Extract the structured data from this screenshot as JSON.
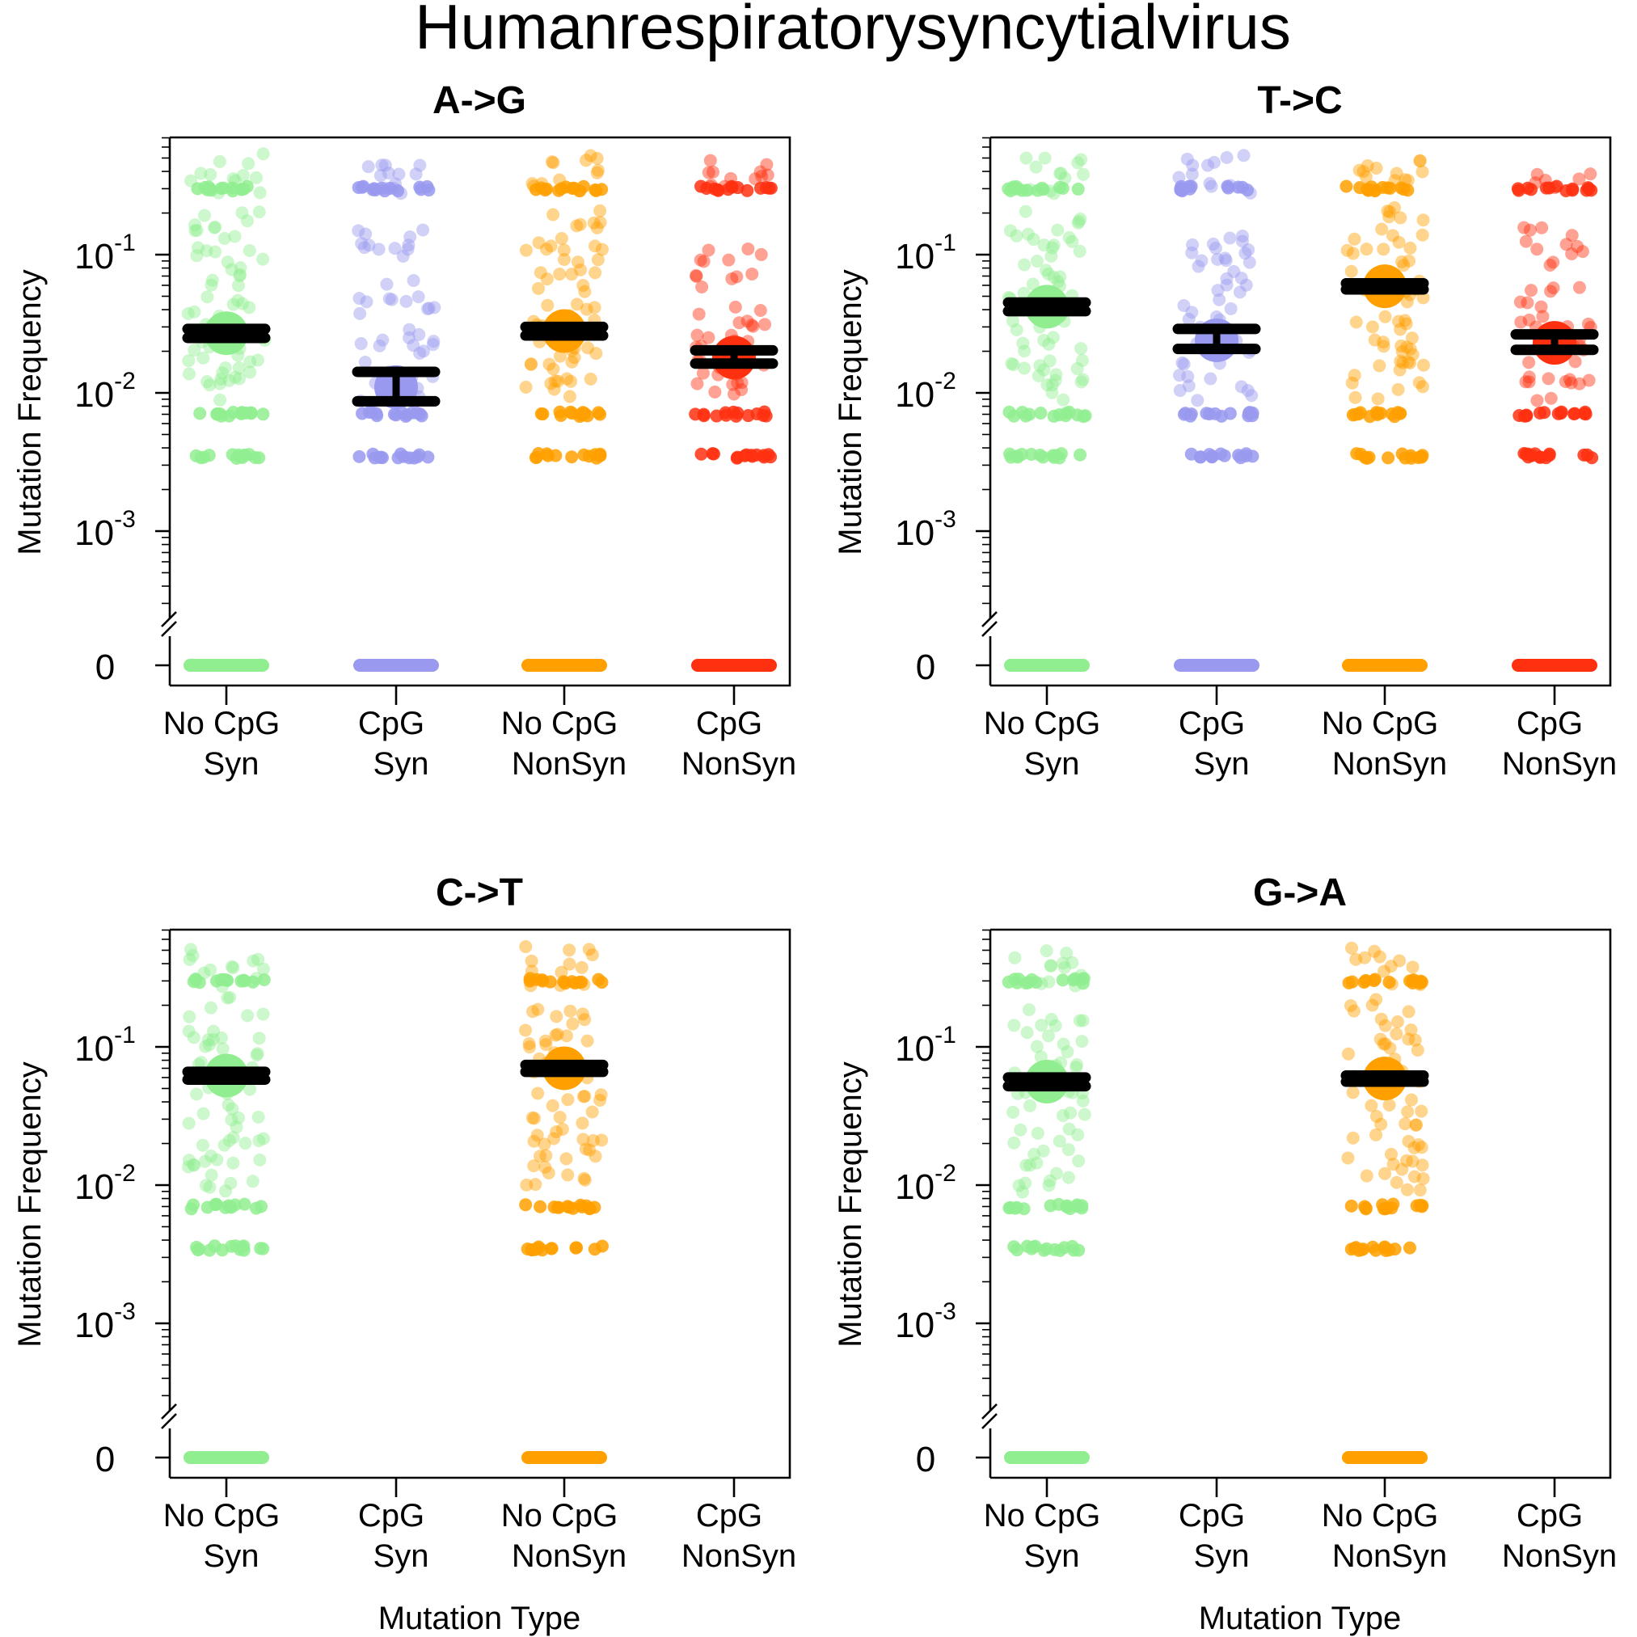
{
  "title": "Humanrespiratorysyncytialvirus",
  "common": {
    "ylabel": "Mutation Frequency",
    "xlabel": "Mutation Type",
    "y_tick_labels": [
      {
        "base": "10",
        "exp": "-1"
      },
      {
        "base": "10",
        "exp": "-2"
      },
      {
        "base": "10",
        "exp": "-3"
      },
      {
        "base": "0",
        "exp": ""
      }
    ],
    "categories": [
      {
        "line1": "No CpG",
        "line2": "Syn"
      },
      {
        "line1": "CpG",
        "line2": "Syn"
      },
      {
        "line1": "No CpG",
        "line2": "NonSyn"
      },
      {
        "line1": "CpG",
        "line2": "NonSyn"
      }
    ]
  },
  "colors": {
    "nocpg_syn": "#90EE90",
    "cpg_syn": "#9999F0",
    "nocpg_nonsyn": "#FFA000",
    "cpg_nonsyn": "#FF3010",
    "error_bar": "#000000"
  },
  "chart_data": [
    {
      "type": "scatter",
      "panel_title": "A->G",
      "y_scale": "log10 with zero break",
      "ylim": [
        0.0001,
        0.7
      ],
      "series": [
        {
          "category": "No CpG Syn",
          "mean": 0.027,
          "ci_low": 0.025,
          "ci_high": 0.029,
          "has_data": true,
          "levels": [
            0.0035,
            0.007,
            0.0105,
            0.014,
            0.018,
            0.024,
            0.035,
            0.05,
            0.07,
            0.1,
            0.13,
            0.19,
            0.3,
            0.33,
            0.45
          ]
        },
        {
          "category": "CpG Syn",
          "mean": 0.011,
          "ci_low": 0.0087,
          "ci_high": 0.0142,
          "has_data": true,
          "levels": [
            0.0035,
            0.007,
            0.0105,
            0.014,
            0.02,
            0.025,
            0.04,
            0.055,
            0.1,
            0.13,
            0.3,
            0.32,
            0.44
          ]
        },
        {
          "category": "No CpG NonSyn",
          "mean": 0.028,
          "ci_low": 0.026,
          "ci_high": 0.03,
          "has_data": true,
          "levels": [
            0.0035,
            0.007,
            0.0105,
            0.014,
            0.018,
            0.024,
            0.035,
            0.05,
            0.07,
            0.1,
            0.13,
            0.18,
            0.3,
            0.33,
            0.45
          ]
        },
        {
          "category": "CpG NonSyn",
          "mean": 0.018,
          "ci_low": 0.0163,
          "ci_high": 0.0203,
          "has_data": true,
          "levels": [
            0.0035,
            0.007,
            0.0105,
            0.014,
            0.02,
            0.027,
            0.035,
            0.06,
            0.1,
            0.3,
            0.33,
            0.42
          ]
        }
      ]
    },
    {
      "type": "scatter",
      "panel_title": "T->C",
      "y_scale": "log10 with zero break",
      "ylim": [
        0.0001,
        0.7
      ],
      "series": [
        {
          "category": "No CpG Syn",
          "mean": 0.042,
          "ci_low": 0.039,
          "ci_high": 0.045,
          "has_data": true,
          "levels": [
            0.0035,
            0.007,
            0.0105,
            0.014,
            0.018,
            0.024,
            0.035,
            0.05,
            0.07,
            0.1,
            0.13,
            0.17,
            0.3,
            0.33,
            0.45
          ]
        },
        {
          "category": "CpG Syn",
          "mean": 0.024,
          "ci_low": 0.0208,
          "ci_high": 0.029,
          "has_data": true,
          "levels": [
            0.0035,
            0.007,
            0.0105,
            0.014,
            0.022,
            0.035,
            0.05,
            0.08,
            0.1,
            0.12,
            0.3,
            0.32,
            0.44
          ]
        },
        {
          "category": "No CpG NonSyn",
          "mean": 0.059,
          "ci_low": 0.056,
          "ci_high": 0.062,
          "has_data": true,
          "levels": [
            0.0035,
            0.007,
            0.0105,
            0.014,
            0.018,
            0.024,
            0.035,
            0.05,
            0.07,
            0.1,
            0.13,
            0.2,
            0.3,
            0.33,
            0.45
          ]
        },
        {
          "category": "CpG NonSyn",
          "mean": 0.023,
          "ci_low": 0.0205,
          "ci_high": 0.0265,
          "has_data": true,
          "levels": [
            0.0035,
            0.007,
            0.0105,
            0.014,
            0.02,
            0.026,
            0.035,
            0.05,
            0.1,
            0.13,
            0.3,
            0.33
          ]
        }
      ]
    },
    {
      "type": "scatter",
      "panel_title": "C->T",
      "y_scale": "log10 with zero break",
      "ylim": [
        0.0001,
        0.7
      ],
      "series": [
        {
          "category": "No CpG Syn",
          "mean": 0.062,
          "ci_low": 0.058,
          "ci_high": 0.066,
          "has_data": true,
          "levels": [
            0.0035,
            0.007,
            0.0105,
            0.014,
            0.018,
            0.024,
            0.035,
            0.05,
            0.07,
            0.1,
            0.13,
            0.19,
            0.3,
            0.33,
            0.45
          ]
        },
        {
          "category": "CpG Syn",
          "has_data": false,
          "levels": []
        },
        {
          "category": "No CpG NonSyn",
          "mean": 0.07,
          "ci_low": 0.066,
          "ci_high": 0.074,
          "has_data": true,
          "levels": [
            0.0035,
            0.007,
            0.0105,
            0.014,
            0.018,
            0.024,
            0.035,
            0.05,
            0.07,
            0.1,
            0.13,
            0.19,
            0.3,
            0.33,
            0.45
          ]
        },
        {
          "category": "CpG NonSyn",
          "has_data": false,
          "levels": []
        }
      ]
    },
    {
      "type": "scatter",
      "panel_title": "G->A",
      "y_scale": "log10 with zero break",
      "ylim": [
        0.0001,
        0.7
      ],
      "series": [
        {
          "category": "No CpG Syn",
          "mean": 0.056,
          "ci_low": 0.052,
          "ci_high": 0.06,
          "has_data": true,
          "levels": [
            0.0035,
            0.007,
            0.0105,
            0.014,
            0.02,
            0.028,
            0.04,
            0.055,
            0.08,
            0.12,
            0.16,
            0.3,
            0.33,
            0.45
          ]
        },
        {
          "category": "CpG Syn",
          "has_data": false,
          "levels": []
        },
        {
          "category": "No CpG NonSyn",
          "mean": 0.059,
          "ci_low": 0.056,
          "ci_high": 0.062,
          "has_data": true,
          "levels": [
            0.0035,
            0.007,
            0.0105,
            0.014,
            0.018,
            0.024,
            0.035,
            0.05,
            0.07,
            0.1,
            0.13,
            0.19,
            0.3,
            0.33,
            0.45
          ]
        },
        {
          "category": "CpG NonSyn",
          "has_data": false,
          "levels": []
        }
      ]
    }
  ]
}
